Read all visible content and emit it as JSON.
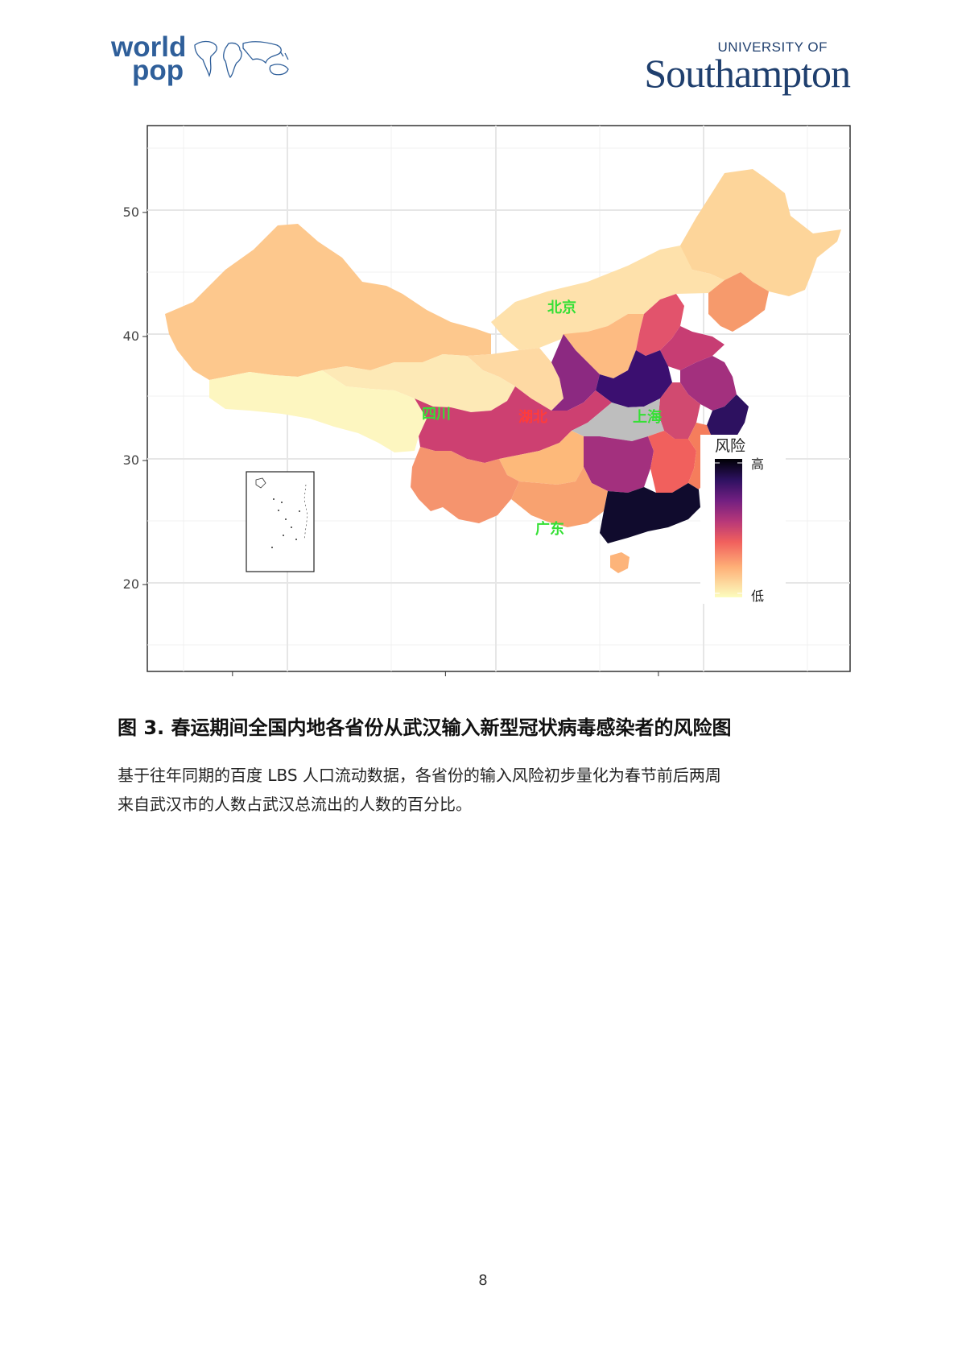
{
  "header": {
    "worldpop_line1": "world",
    "worldpop_line2": "pop",
    "university_line1": "UNIVERSITY OF",
    "university_line2": "Southampton"
  },
  "figure": {
    "labels": {
      "beijing": "北京",
      "sichuan": "四川",
      "hubei": "湖北",
      "shanghai": "上海",
      "guangdong": "广东"
    },
    "legend": {
      "title": "风险",
      "high": "高",
      "low": "低"
    },
    "colors": {
      "high": "#000004",
      "low": "#fcfdbf",
      "hubei": "#bebebe",
      "label_green": "#35e035",
      "label_red": "#ff3b3b"
    }
  },
  "chart_data": {
    "type": "heatmap",
    "xlim": [
      72,
      138
    ],
    "ylim": [
      13,
      57
    ],
    "x_ticks": [
      80,
      100,
      120
    ],
    "y_ticks": [
      20,
      30,
      40,
      50
    ],
    "grid": true,
    "legend_placement": "inside-bottom-right",
    "colormap": "magma",
    "regions": [
      {
        "name": "广东",
        "risk": "highest"
      },
      {
        "name": "湖北",
        "risk": "origin"
      },
      {
        "name": "上海",
        "risk": "high"
      },
      {
        "name": "北京",
        "risk": "medium"
      },
      {
        "name": "四川",
        "risk": "medium"
      }
    ]
  },
  "caption": {
    "title": "图 3. 春运期间全国内地各省份从武汉输入新型冠状病毒感染者的风险图",
    "line1": "基于往年同期的百度 LBS 人口流动数据，各省份的输入风险初步量化为春节前后两周",
    "line2": "来自武汉市的人数占武汉总流出的人数的百分比。"
  },
  "page_number": "8"
}
